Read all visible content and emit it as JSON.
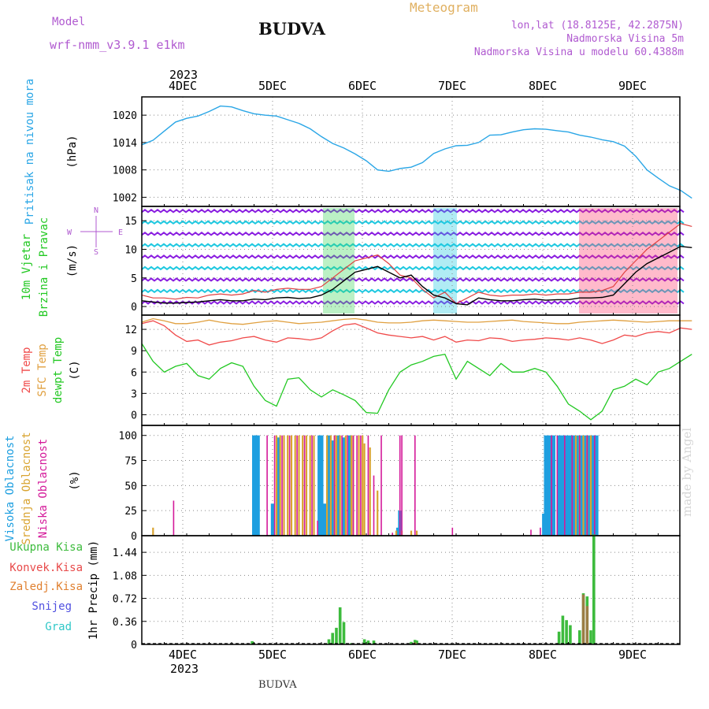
{
  "header": {
    "model_label": "Model",
    "model_name": "wrf-nmm_v3.9.1 e1km",
    "city": "BUDVA",
    "title": "Meteogram",
    "location_lines": [
      "lon,lat (18.8125E, 42.2875N)",
      "Nadmorska Visina 5m",
      "Nadmorska Visina u modelu 60.4388m"
    ]
  },
  "footer_city": "BUDVA",
  "watermark": "made by Angel",
  "colors": {
    "pressure": "#2aa6e6",
    "temp2m": "#f04a4a",
    "sfc": "#e0a040",
    "dewpt": "#22c822",
    "high_cloud": "#1e9fe0",
    "mid_cloud": "#d9a431",
    "low_cloud": "#d41a9a",
    "precip_total": "#3dbb3d",
    "precip_conv": "#e84a4a",
    "precip_frozen": "#e08030",
    "snow": "#5050e0",
    "hail": "#30c8c8",
    "wind_speed": "#000000",
    "wind_gust": "#e04040"
  },
  "chart_data": [
    {
      "type": "line",
      "panel": "pressure",
      "ylabel_left": "Pritisak na nivou mora",
      "unit": "(hPa)",
      "yticks": [
        1002,
        1008,
        1014,
        1020
      ],
      "ylim": [
        1000,
        1024
      ],
      "x_top_labels": [
        "4DEC",
        "5DEC",
        "6DEC",
        "7DEC",
        "8DEC",
        "9DEC"
      ],
      "year_label": "2023",
      "x_hours": [
        0,
        3,
        6,
        9,
        12,
        15,
        18,
        21,
        24,
        27,
        30,
        33,
        36,
        39,
        42,
        45,
        48,
        51,
        54,
        57,
        60,
        63,
        66,
        69,
        72,
        75,
        78,
        81,
        84,
        87,
        90,
        93,
        96,
        99,
        102,
        105,
        108,
        111,
        114,
        117,
        120,
        123,
        126,
        129,
        132,
        135,
        138,
        141,
        144,
        147
      ],
      "series": [
        {
          "name": "Pritisak na nivou mora",
          "values": [
            1013.5,
            1014.5,
            1016.5,
            1018.5,
            1019.3,
            1019.8,
            1020.8,
            1022.0,
            1021.8,
            1021.0,
            1020.3,
            1020.0,
            1019.8,
            1019.0,
            1018.2,
            1017.0,
            1015.3,
            1013.8,
            1012.8,
            1011.5,
            1010.0,
            1008.0,
            1007.7,
            1008.3,
            1008.6,
            1009.6,
            1011.6,
            1012.6,
            1013.3,
            1013.4,
            1014.0,
            1015.6,
            1015.7,
            1016.3,
            1016.8,
            1017.0,
            1016.9,
            1016.6,
            1016.3,
            1015.6,
            1015.2,
            1014.6,
            1014.2,
            1013.2,
            1011.0,
            1008.0,
            1006.2,
            1004.5,
            1003.5,
            1001.8
          ]
        }
      ]
    },
    {
      "type": "line",
      "panel": "wind",
      "ylabel_left": [
        "10m Vjetar",
        "Brzina i Pravac"
      ],
      "unit": "(m/s)",
      "compass": [
        "N",
        "W",
        "E",
        "S"
      ],
      "yticks": [
        0,
        5,
        10,
        15
      ],
      "ylim": [
        -1.5,
        17.5
      ],
      "x_hours": [
        0,
        3,
        6,
        9,
        12,
        15,
        18,
        21,
        24,
        27,
        30,
        33,
        36,
        39,
        42,
        45,
        48,
        51,
        54,
        57,
        60,
        63,
        66,
        69,
        72,
        75,
        78,
        81,
        84,
        87,
        90,
        93,
        96,
        99,
        102,
        105,
        108,
        111,
        114,
        117,
        120,
        123,
        126,
        129,
        132,
        135,
        138,
        141,
        144,
        147
      ],
      "series": [
        {
          "name": "speed",
          "values": [
            1.0,
            0.8,
            0.6,
            0.6,
            0.7,
            0.8,
            1.0,
            1.2,
            1.0,
            1.0,
            1.3,
            1.2,
            1.5,
            1.6,
            1.4,
            1.5,
            2.0,
            3.0,
            4.5,
            6.0,
            6.5,
            7.0,
            6.0,
            5.0,
            5.5,
            3.5,
            2.0,
            1.5,
            0.5,
            0.3,
            1.5,
            1.2,
            1.0,
            1.0,
            1.2,
            1.3,
            1.1,
            1.2,
            1.2,
            1.5,
            1.5,
            1.6,
            2.0,
            4.0,
            6.0,
            7.5,
            8.5,
            9.5,
            10.5,
            10.3
          ]
        },
        {
          "name": "gust",
          "values": [
            2.0,
            1.5,
            1.5,
            1.3,
            1.6,
            1.5,
            2.0,
            2.2,
            2.0,
            2.2,
            2.8,
            2.5,
            3.0,
            3.2,
            3.0,
            3.0,
            3.5,
            5.0,
            6.5,
            8.0,
            8.5,
            9.0,
            7.5,
            5.5,
            5.0,
            3.0,
            1.5,
            2.5,
            0.5,
            1.5,
            2.5,
            2.0,
            1.8,
            2.0,
            2.0,
            2.2,
            2.0,
            2.2,
            2.2,
            2.5,
            2.5,
            2.8,
            3.5,
            6.0,
            8.0,
            10.0,
            11.5,
            13.0,
            14.5,
            14.0
          ]
        }
      ]
    },
    {
      "type": "line",
      "panel": "temperature",
      "ylabel_left": [
        "2m Temp",
        "SFC Temp",
        "dewpt Temp"
      ],
      "unit": "(C)",
      "yticks": [
        0,
        3,
        6,
        9,
        12
      ],
      "ylim": [
        -1.5,
        14
      ],
      "x_hours": [
        0,
        3,
        6,
        9,
        12,
        15,
        18,
        21,
        24,
        27,
        30,
        33,
        36,
        39,
        42,
        45,
        48,
        51,
        54,
        57,
        60,
        63,
        66,
        69,
        72,
        75,
        78,
        81,
        84,
        87,
        90,
        93,
        96,
        99,
        102,
        105,
        108,
        111,
        114,
        117,
        120,
        123,
        126,
        129,
        132,
        135,
        138,
        141,
        144,
        147
      ],
      "series": [
        {
          "name": "2m Temp",
          "values": [
            12.8,
            13.2,
            12.5,
            11.2,
            10.3,
            10.5,
            9.8,
            10.2,
            10.4,
            10.8,
            11.0,
            10.5,
            10.2,
            10.8,
            10.7,
            10.5,
            10.8,
            11.8,
            12.6,
            12.8,
            12.2,
            11.5,
            11.2,
            11.0,
            10.8,
            11.0,
            10.5,
            11.0,
            10.2,
            10.5,
            10.4,
            10.8,
            10.7,
            10.3,
            10.5,
            10.6,
            10.8,
            10.7,
            10.5,
            10.8,
            10.5,
            10.0,
            10.5,
            11.2,
            11.0,
            11.5,
            11.7,
            11.5,
            12.2,
            12.0
          ]
        },
        {
          "name": "SFC Temp",
          "values": [
            13.0,
            13.5,
            13.2,
            12.8,
            12.8,
            13.0,
            13.3,
            13.0,
            12.8,
            12.7,
            12.9,
            13.1,
            13.2,
            13.0,
            12.8,
            12.9,
            13.0,
            13.2,
            13.4,
            13.5,
            13.3,
            13.0,
            12.9,
            12.9,
            13.0,
            13.2,
            13.3,
            13.2,
            13.1,
            13.0,
            13.0,
            13.1,
            13.2,
            13.3,
            13.1,
            13.0,
            12.9,
            12.8,
            12.8,
            13.0,
            13.1,
            13.2,
            13.3,
            13.2,
            13.1,
            13.0,
            13.1,
            13.2,
            13.2,
            13.2
          ]
        },
        {
          "name": "dewpt Temp",
          "values": [
            10.0,
            7.5,
            6.0,
            6.8,
            7.2,
            5.5,
            5.0,
            6.5,
            7.3,
            6.8,
            4.0,
            2.0,
            1.2,
            5.0,
            5.2,
            3.5,
            2.5,
            3.5,
            2.8,
            2.0,
            0.3,
            0.2,
            3.5,
            6.0,
            7.0,
            7.5,
            8.2,
            8.5,
            5.0,
            7.5,
            6.5,
            5.5,
            7.2,
            6.0,
            6.0,
            6.5,
            6.0,
            4.0,
            1.5,
            0.5,
            -0.7,
            0.5,
            3.5,
            4.0,
            5.0,
            4.2,
            6.0,
            6.5,
            7.5,
            8.5
          ]
        }
      ]
    },
    {
      "type": "bar",
      "panel": "cloud",
      "ylabel_left": [
        "Visoka Oblacnost",
        "Srednja Oblacnost",
        "Niska Oblacnost"
      ],
      "unit": "(%)",
      "yticks": [
        0,
        25,
        50,
        75,
        100
      ],
      "ylim": [
        0,
        110
      ],
      "series": [
        {
          "name": "Visoka Oblacnost",
          "bars": [
            [
              30,
              100
            ],
            [
              30.5,
              100
            ],
            [
              31,
              100
            ],
            [
              35,
              32
            ],
            [
              36.5,
              98
            ],
            [
              47.5,
              100
            ],
            [
              48,
              100
            ],
            [
              49,
              32
            ],
            [
              50,
              100
            ],
            [
              51,
              95
            ],
            [
              52.5,
              100
            ],
            [
              54,
              98
            ],
            [
              55.5,
              100
            ],
            [
              68.5,
              8
            ],
            [
              69,
              25
            ],
            [
              107.5,
              22
            ],
            [
              108,
              100
            ],
            [
              109,
              100
            ],
            [
              110,
              100
            ],
            [
              111.5,
              100
            ],
            [
              112.5,
              100
            ],
            [
              113.5,
              100
            ],
            [
              114.5,
              100
            ],
            [
              115.5,
              100
            ],
            [
              116.5,
              100
            ],
            [
              117.5,
              100
            ],
            [
              118.5,
              100
            ],
            [
              119.5,
              100
            ],
            [
              120.5,
              100
            ],
            [
              121.5,
              100
            ]
          ]
        },
        {
          "name": "Srednja Oblacnost",
          "bars": [
            [
              3,
              8
            ],
            [
              36,
              100
            ],
            [
              37,
              100
            ],
            [
              38,
              100
            ],
            [
              39,
              100
            ],
            [
              40,
              100
            ],
            [
              41,
              100
            ],
            [
              42,
              100
            ],
            [
              43,
              100
            ],
            [
              44,
              100
            ],
            [
              45,
              100
            ],
            [
              46,
              100
            ],
            [
              49.5,
              100
            ],
            [
              50.5,
              100
            ],
            [
              51.5,
              100
            ],
            [
              52,
              100
            ],
            [
              53,
              100
            ],
            [
              54.5,
              100
            ],
            [
              56,
              100
            ],
            [
              56.5,
              100
            ],
            [
              58,
              100
            ],
            [
              59,
              100
            ],
            [
              59.5,
              92
            ],
            [
              61,
              88
            ],
            [
              63,
              45
            ],
            [
              68,
              5
            ],
            [
              69.5,
              5
            ],
            [
              72,
              5
            ],
            [
              73.5,
              5
            ],
            [
              116,
              100
            ],
            [
              117,
              100
            ],
            [
              118,
              100
            ],
            [
              119,
              100
            ],
            [
              120,
              100
            ]
          ]
        },
        {
          "name": "Niska Oblacnost",
          "bars": [
            [
              8.5,
              35
            ],
            [
              33.5,
              100
            ],
            [
              35.5,
              100
            ],
            [
              37.5,
              100
            ],
            [
              39.5,
              100
            ],
            [
              41.5,
              100
            ],
            [
              43.5,
              100
            ],
            [
              45.5,
              100
            ],
            [
              47,
              15
            ],
            [
              51.5,
              100
            ],
            [
              53.5,
              100
            ],
            [
              55,
              100
            ],
            [
              56.5,
              100
            ],
            [
              57.5,
              100
            ],
            [
              58.5,
              100
            ],
            [
              60.5,
              100
            ],
            [
              62,
              60
            ],
            [
              64,
              100
            ],
            [
              67,
              3
            ],
            [
              69,
              100
            ],
            [
              69.5,
              100
            ],
            [
              73,
              100
            ],
            [
              83,
              8
            ],
            [
              104,
              6
            ],
            [
              106.5,
              8
            ],
            [
              109.5,
              100
            ],
            [
              111,
              100
            ],
            [
              113,
              100
            ],
            [
              115,
              100
            ],
            [
              117,
              100
            ],
            [
              119,
              100
            ],
            [
              121,
              100
            ]
          ]
        }
      ]
    },
    {
      "type": "bar",
      "panel": "precipitation",
      "ylabel_left": [
        "Ukupna Kisa",
        "Konvek.Kisa",
        "Zaledj.Kisa",
        "Snijeg",
        "Grad"
      ],
      "unit": "1hr Precip (mm)",
      "yticks": [
        0,
        0.36,
        0.72,
        1.08,
        1.44
      ],
      "ylim": [
        0,
        1.7
      ],
      "x_bottom_labels": [
        "4DEC",
        "5DEC",
        "6DEC",
        "7DEC",
        "8DEC",
        "9DEC"
      ],
      "year_label": "2023",
      "series": [
        {
          "name": "Ukupna Kisa",
          "bars": [
            [
              29.5,
              0.05
            ],
            [
              50,
              0.08
            ],
            [
              51,
              0.18
            ],
            [
              52,
              0.26
            ],
            [
              53,
              0.58
            ],
            [
              54,
              0.35
            ],
            [
              56,
              0.02
            ],
            [
              59.5,
              0.08
            ],
            [
              60.5,
              0.06
            ],
            [
              62,
              0.06
            ],
            [
              72,
              0.04
            ],
            [
              73,
              0.07
            ],
            [
              73.5,
              0.06
            ],
            [
              111.5,
              0.2
            ],
            [
              112.5,
              0.45
            ],
            [
              113.5,
              0.38
            ],
            [
              114.5,
              0.3
            ],
            [
              117,
              0.22
            ],
            [
              118,
              0.8
            ],
            [
              119,
              0.75
            ],
            [
              120,
              0.22
            ],
            [
              120.8,
              1.72
            ]
          ]
        },
        {
          "name": "Konvek.Kisa",
          "bars": [
            [
              73,
              0.03
            ],
            [
              118,
              0.78
            ],
            [
              119,
              0.6
            ]
          ]
        }
      ]
    }
  ]
}
